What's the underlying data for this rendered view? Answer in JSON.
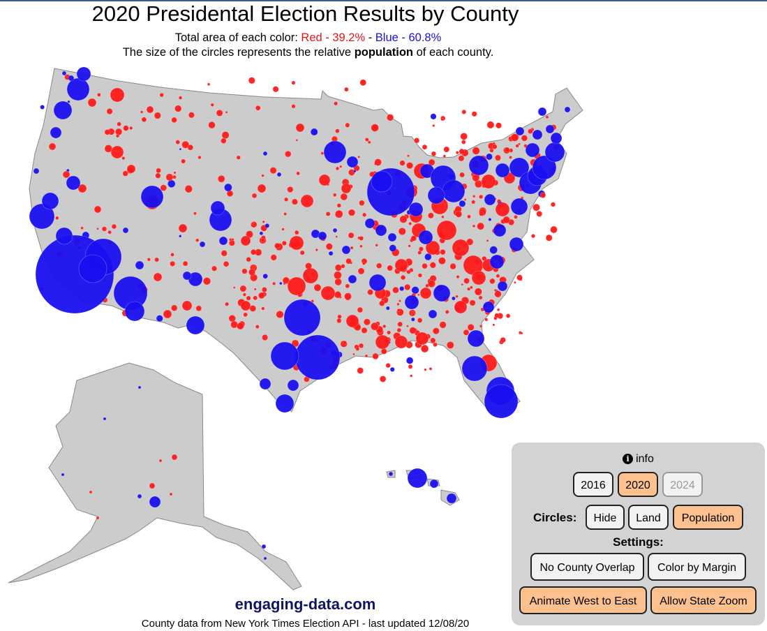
{
  "header": {
    "title": "2020 Presidental Election Results by County",
    "area_prefix": "Total area of each color: ",
    "red_label": "Red - 39.2%",
    "separator": " - ",
    "blue_label": "Blue - 60.8%",
    "size_before": "The size of the circles represents the relative ",
    "size_bold": "population",
    "size_after": " of each county."
  },
  "colors": {
    "red": "#ff1a1a",
    "blue": "#1a0ff0",
    "land": "#cccccc",
    "accent": "#fdc08f"
  },
  "results": {
    "red_share_pct": 39.2,
    "blue_share_pct": 60.8
  },
  "footer": {
    "site": "engaging-data.com",
    "credit": "County data from New York Times Election API - last updated 12/08/20"
  },
  "controls": {
    "info_label": "info",
    "years": [
      {
        "label": "2016",
        "state": "normal"
      },
      {
        "label": "2020",
        "state": "selected"
      },
      {
        "label": "2024",
        "state": "disabled"
      }
    ],
    "circles_label": "Circles:",
    "circle_modes": [
      {
        "label": "Hide",
        "state": "normal"
      },
      {
        "label": "Land",
        "state": "normal"
      },
      {
        "label": "Population",
        "state": "selected"
      }
    ],
    "settings_label": "Settings:",
    "settings": [
      {
        "label": "No County Overlap",
        "state": "normal"
      },
      {
        "label": "Color by Margin",
        "state": "normal"
      },
      {
        "label": "Animate West to East",
        "state": "selected"
      },
      {
        "label": "Allow State Zoom",
        "state": "selected"
      }
    ]
  }
}
